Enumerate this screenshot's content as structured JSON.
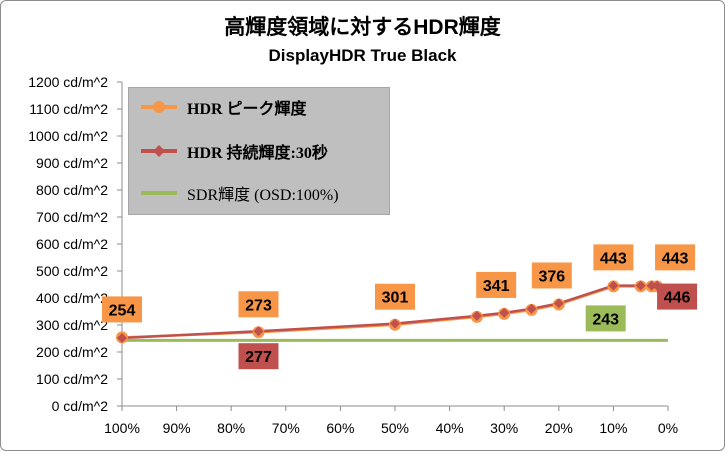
{
  "chart_data": {
    "type": "line",
    "title": "高輝度領域に対するHDR輝度",
    "subtitle": "DisplayHDR True Black",
    "xlabel": "",
    "ylabel": "",
    "x_ticks": [
      "100%",
      "90%",
      "80%",
      "70%",
      "60%",
      "50%",
      "40%",
      "30%",
      "20%",
      "10%",
      "0%"
    ],
    "y_ticks": [
      "0 cd/m^2",
      "100 cd/m^2",
      "200 cd/m^2",
      "300 cd/m^2",
      "400 cd/m^2",
      "500 cd/m^2",
      "600 cd/m^2",
      "700 cd/m^2",
      "800 cd/m^2",
      "900 cd/m^2",
      "1000 cd/m^2",
      "1100 cd/m^2",
      "1200 cd/m^2"
    ],
    "xlim": [
      100,
      0
    ],
    "ylim": [
      0,
      1200
    ],
    "grid": false,
    "legend_position": "top-left",
    "series": [
      {
        "name": "HDR ピーク輝度",
        "color": "#f79646",
        "marker": "circle",
        "x": [
          100,
          75,
          50,
          35,
          30,
          25,
          20,
          10,
          5,
          3,
          2
        ],
        "y": [
          254,
          273,
          301,
          330,
          341,
          356,
          376,
          443,
          443,
          443,
          443
        ],
        "labels": [
          {
            "x": 100,
            "text": "254"
          },
          {
            "x": 75,
            "text": "273"
          },
          {
            "x": 50,
            "text": "301"
          },
          {
            "x": 30,
            "text": "341"
          },
          {
            "x": 20,
            "text": "376"
          },
          {
            "x": 10,
            "text": "443"
          },
          {
            "x": 2,
            "text": "443"
          }
        ]
      },
      {
        "name": "HDR 持続輝度:30秒",
        "color": "#c0504d",
        "marker": "diamond",
        "x": [
          100,
          75,
          50,
          35,
          30,
          25,
          20,
          10,
          5,
          3,
          2
        ],
        "y": [
          252,
          277,
          305,
          334,
          345,
          360,
          380,
          446,
          446,
          446,
          446
        ],
        "labels": [
          {
            "x": 75,
            "text": "277"
          },
          {
            "x": 2,
            "text": "446"
          }
        ]
      },
      {
        "name": "SDR輝度 (OSD:100%)",
        "color": "#9bbb59",
        "marker": "none",
        "x": [
          100,
          0
        ],
        "y": [
          243,
          243
        ],
        "labels": [
          {
            "x": 5,
            "text": "243"
          }
        ]
      }
    ]
  }
}
